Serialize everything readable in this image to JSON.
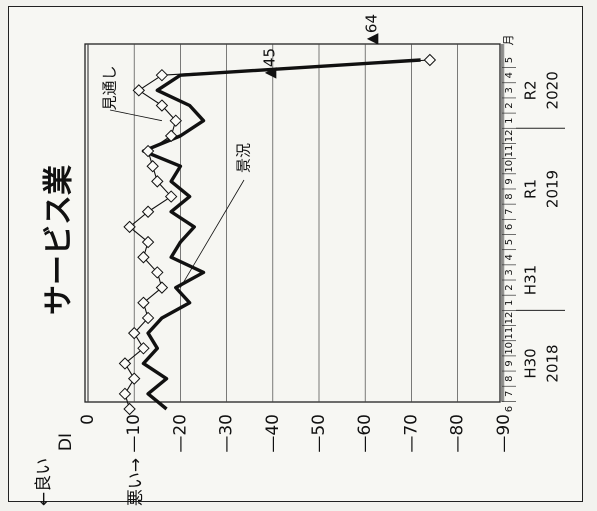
{
  "chart_data": {
    "type": "line",
    "orientation": "rotated-90",
    "title": "サービス業",
    "di_label": "DI",
    "good_label": "良い",
    "bad_label": "悪い",
    "ylim": [
      0,
      -95
    ],
    "yticks": [
      0,
      -10,
      -20,
      -30,
      -40,
      -50,
      -60,
      -70,
      -80,
      -90
    ],
    "ytick_labels": [
      "0",
      "—10",
      "—20",
      "—30",
      "—40",
      "—50",
      "—60",
      "—70",
      "—80",
      "—90"
    ],
    "x_months": [
      "6",
      "7",
      "8",
      "9",
      "10",
      "11",
      "12",
      "1",
      "2",
      "3",
      "4",
      "5",
      "6",
      "7",
      "8",
      "9",
      "10",
      "11",
      "12",
      "1",
      "2",
      "3",
      "4",
      "5"
    ],
    "x_month_suffix": "月",
    "eras": [
      {
        "era": "H30",
        "year": "2018"
      },
      {
        "era": "H31",
        "year": ""
      },
      {
        "era": "R1",
        "year": "2019"
      },
      {
        "era": "R2",
        "year": "2020"
      }
    ],
    "grid": "horizontal",
    "series": [
      {
        "name": "景況",
        "marker": "none",
        "style": "thick",
        "values": [
          -17,
          -13,
          -17,
          -12,
          -15,
          -13,
          -16,
          -22,
          -19,
          -25,
          -18,
          -20,
          -23,
          -18,
          -22,
          -18,
          -20,
          -12,
          -20,
          -25,
          -22,
          -15,
          -20,
          -72
        ]
      },
      {
        "name": "見通し",
        "marker": "diamond",
        "style": "thin",
        "values": [
          -9,
          -8,
          -10,
          -8,
          -12,
          -10,
          -13,
          -12,
          -16,
          -15,
          -12,
          -13,
          -9,
          -13,
          -18,
          -15,
          -14,
          -13,
          -18,
          -19,
          -16,
          -11,
          -16,
          -74
        ]
      }
    ],
    "annotations": [
      {
        "label": "▲45",
        "series": "見通し",
        "value": -45
      },
      {
        "label": "▲64",
        "series": "景況",
        "value": -64
      }
    ]
  }
}
